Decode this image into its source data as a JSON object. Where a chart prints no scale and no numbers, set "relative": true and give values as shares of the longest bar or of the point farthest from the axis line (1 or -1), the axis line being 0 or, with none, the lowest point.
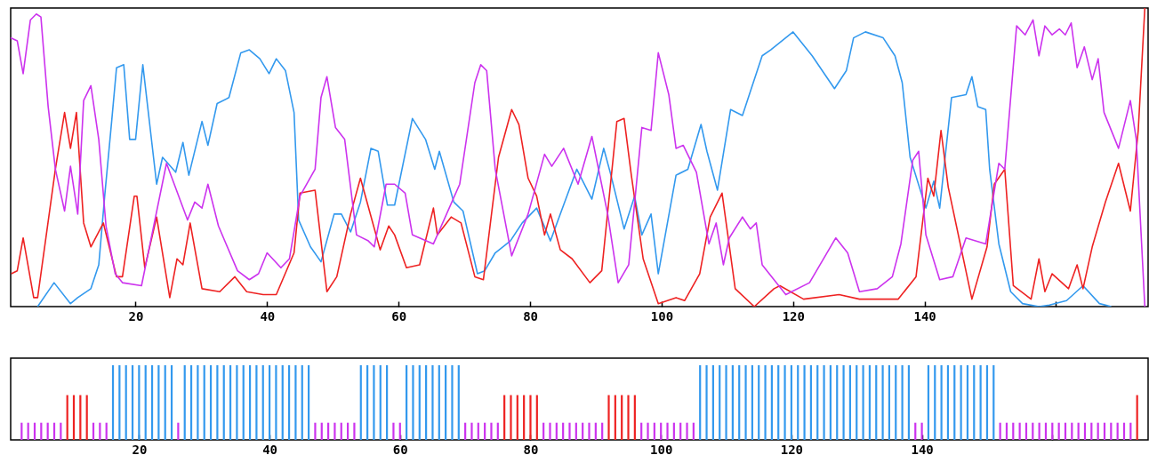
{
  "chart_data": [
    {
      "type": "line",
      "relative": true,
      "xlim": [
        1,
        174
      ],
      "xticks": [
        20,
        40,
        60,
        80,
        100,
        120,
        140,
        {
          "value": 160,
          "label": null
        }
      ],
      "series": [
        {
          "color": "#3399ee",
          "x": [
            5.1,
            7.6,
            10.1,
            11.2,
            13.2,
            14.4,
            15.3,
            16.4,
            17.1,
            18.2,
            19.1,
            20,
            21.1,
            23.2,
            24.1,
            26.1,
            27.2,
            28.1,
            30.1,
            31,
            32.4,
            34.2,
            36,
            37.3,
            38.9,
            40.3,
            41.4,
            42.8,
            44.1,
            44.8,
            46.6,
            48.2,
            50.2,
            51.3,
            52.7,
            54.2,
            55.8,
            56.9,
            58.3,
            59.4,
            62.1,
            64.1,
            65.5,
            66.2,
            68.4,
            69.8,
            72,
            73.1,
            74.7,
            77,
            78.8,
            81,
            83.1,
            84.6,
            87.1,
            89.4,
            91.2,
            92.3,
            94.3,
            95.9,
            97,
            98.4,
            99.5,
            102.2,
            104,
            106,
            106.9,
            108.5,
            110.5,
            112.3,
            113.5,
            115.3,
            116.6,
            120,
            122.9,
            126.3,
            128.1,
            129.2,
            131,
            133.7,
            135.5,
            136.6,
            137.8,
            140.2,
            141.4,
            142.3,
            144.1,
            146.3,
            147.2,
            148.1,
            149.3,
            149.9,
            151.3,
            153.1,
            154.9,
            157.4,
            159,
            161.6,
            164.1,
            166.6,
            168.4
          ],
          "values": [
            0,
            0.08,
            0.01,
            0.03,
            0.06,
            0.14,
            0.37,
            0.63,
            0.8,
            0.81,
            0.56,
            0.56,
            0.81,
            0.41,
            0.5,
            0.45,
            0.55,
            0.44,
            0.62,
            0.54,
            0.68,
            0.7,
            0.85,
            0.86,
            0.83,
            0.78,
            0.83,
            0.79,
            0.65,
            0.29,
            0.2,
            0.15,
            0.31,
            0.31,
            0.25,
            0.35,
            0.53,
            0.52,
            0.34,
            0.34,
            0.63,
            0.56,
            0.46,
            0.52,
            0.35,
            0.32,
            0.11,
            0.12,
            0.18,
            0.22,
            0.28,
            0.33,
            0.22,
            0.31,
            0.46,
            0.36,
            0.53,
            0.44,
            0.26,
            0.37,
            0.24,
            0.31,
            0.11,
            0.44,
            0.46,
            0.61,
            0.52,
            0.39,
            0.66,
            0.64,
            0.72,
            0.84,
            0.86,
            0.92,
            0.84,
            0.73,
            0.79,
            0.9,
            0.92,
            0.9,
            0.84,
            0.75,
            0.5,
            0.33,
            0.42,
            0.33,
            0.7,
            0.71,
            0.77,
            0.67,
            0.66,
            0.46,
            0.21,
            0.05,
            0.01,
            0,
            0.005,
            0.02,
            0.07,
            0.01,
            0
          ]
        },
        {
          "color": "#ee2222",
          "x": [
            1.1,
            2,
            2.9,
            4.5,
            5.1,
            7.8,
            9.2,
            10.1,
            11,
            12.1,
            13.2,
            15.1,
            17.1,
            18,
            19.8,
            20.2,
            21.4,
            23.2,
            25.2,
            26.3,
            27.2,
            28.3,
            30.1,
            32.8,
            35.1,
            36.9,
            39.4,
            41.4,
            44.1,
            45,
            47.3,
            49.1,
            50.6,
            52.7,
            54.2,
            57.2,
            58.5,
            59.4,
            61.2,
            63.2,
            65.3,
            65.9,
            68,
            69.5,
            71.6,
            72.9,
            75.2,
            77.2,
            78.3,
            79.7,
            81,
            82.2,
            83.1,
            84.6,
            86.4,
            89.1,
            90.9,
            93.2,
            94.3,
            95.4,
            97.2,
            99.5,
            102.2,
            103.5,
            105.8,
            107.4,
            109.2,
            111.2,
            114.1,
            117.1,
            118,
            121.6,
            127,
            130.1,
            136,
            138.7,
            140.5,
            141.4,
            142.5,
            143.6,
            147.2,
            149.5,
            150.6,
            152.2,
            153.5,
            156.2,
            157.4,
            158.3,
            159.4,
            161.9,
            163.2,
            164.1,
            165.5,
            167.5,
            169.5,
            171.3,
            172.5,
            173.5
          ],
          "values": [
            0.11,
            0.12,
            0.23,
            0.03,
            0.03,
            0.46,
            0.65,
            0.53,
            0.65,
            0.28,
            0.2,
            0.28,
            0.1,
            0.1,
            0.37,
            0.37,
            0.13,
            0.3,
            0.03,
            0.16,
            0.14,
            0.28,
            0.06,
            0.05,
            0.1,
            0.05,
            0.04,
            0.04,
            0.18,
            0.38,
            0.39,
            0.05,
            0.1,
            0.31,
            0.43,
            0.19,
            0.27,
            0.24,
            0.13,
            0.14,
            0.33,
            0.24,
            0.3,
            0.28,
            0.1,
            0.09,
            0.5,
            0.66,
            0.61,
            0.43,
            0.37,
            0.24,
            0.31,
            0.19,
            0.16,
            0.08,
            0.12,
            0.62,
            0.63,
            0.44,
            0.16,
            0.01,
            0.03,
            0.02,
            0.11,
            0.3,
            0.38,
            0.06,
            0,
            0.06,
            0.07,
            0.025,
            0.04,
            0.025,
            0.025,
            0.1,
            0.43,
            0.37,
            0.59,
            0.4,
            0.025,
            0.2,
            0.41,
            0.46,
            0.07,
            0.025,
            0.16,
            0.05,
            0.11,
            0.06,
            0.14,
            0.06,
            0.2,
            0.35,
            0.48,
            0.32,
            0.59,
            1
          ]
        },
        {
          "color": "#cc33ee",
          "x": [
            1,
            2,
            2.9,
            4,
            4.9,
            5.6,
            6.7,
            7.8,
            9.2,
            10.1,
            11.2,
            12.1,
            13.2,
            14.4,
            15.5,
            16.9,
            18,
            20.9,
            24.7,
            27.9,
            29,
            30.1,
            31,
            32.6,
            35.5,
            37.3,
            38.7,
            40,
            42.1,
            43.4,
            45,
            47.3,
            48.2,
            49.1,
            50.4,
            51.8,
            53.6,
            55.4,
            56.3,
            58.1,
            59.4,
            61,
            62.1,
            65.3,
            69.3,
            71.6,
            72.5,
            73.4,
            74.7,
            77.2,
            79.7,
            82.2,
            83.3,
            85.1,
            87.3,
            89.4,
            91.8,
            93.4,
            95,
            97,
            98.4,
            99.5,
            101.1,
            102.2,
            103.3,
            105.3,
            107.2,
            108.3,
            109.4,
            110.3,
            112.3,
            113.5,
            114.4,
            115.3,
            118.9,
            122.5,
            126.5,
            128.3,
            130.1,
            132.8,
            135.1,
            136.4,
            138.2,
            139.1,
            140.2,
            142.3,
            144.3,
            146.3,
            149.3,
            151.3,
            152.2,
            154,
            155.3,
            156.5,
            157.4,
            158.3,
            159.4,
            160.5,
            161.4,
            162.3,
            163.2,
            164.3,
            165.5,
            166.4,
            167.3,
            169.5,
            171.3,
            172.2,
            173.5
          ],
          "values": [
            0.9,
            0.89,
            0.78,
            0.96,
            0.98,
            0.97,
            0.67,
            0.46,
            0.32,
            0.47,
            0.31,
            0.69,
            0.74,
            0.56,
            0.27,
            0.11,
            0.08,
            0.07,
            0.48,
            0.29,
            0.35,
            0.33,
            0.41,
            0.27,
            0.12,
            0.09,
            0.11,
            0.18,
            0.13,
            0.16,
            0.37,
            0.46,
            0.7,
            0.77,
            0.6,
            0.56,
            0.24,
            0.22,
            0.2,
            0.41,
            0.41,
            0.38,
            0.24,
            0.21,
            0.41,
            0.75,
            0.81,
            0.79,
            0.46,
            0.17,
            0.31,
            0.51,
            0.47,
            0.53,
            0.41,
            0.57,
            0.31,
            0.08,
            0.14,
            0.6,
            0.59,
            0.85,
            0.71,
            0.53,
            0.54,
            0.45,
            0.21,
            0.28,
            0.14,
            0.23,
            0.3,
            0.26,
            0.28,
            0.14,
            0.04,
            0.08,
            0.23,
            0.18,
            0.05,
            0.06,
            0.1,
            0.21,
            0.49,
            0.52,
            0.24,
            0.09,
            0.1,
            0.23,
            0.21,
            0.48,
            0.46,
            0.94,
            0.91,
            0.96,
            0.84,
            0.94,
            0.91,
            0.93,
            0.91,
            0.95,
            0.8,
            0.87,
            0.76,
            0.83,
            0.65,
            0.53,
            0.69,
            0.56,
            0
          ]
        }
      ]
    },
    {
      "type": "bar",
      "relative": true,
      "xlim": [
        1,
        174
      ],
      "xticks": [
        20,
        40,
        60,
        80,
        100,
        120,
        140,
        {
          "value": 160,
          "label": null
        }
      ],
      "x": [
        2,
        3,
        4,
        5,
        6,
        7,
        8,
        9,
        10,
        11,
        12,
        13,
        14,
        15,
        16,
        17,
        18,
        19,
        20,
        21,
        22,
        23,
        24,
        25,
        26,
        27,
        28,
        29,
        30,
        31,
        32,
        33,
        34,
        35,
        36,
        37,
        38,
        39,
        40,
        41,
        42,
        43,
        44,
        45,
        46,
        47,
        48,
        49,
        50,
        51,
        52,
        53,
        54,
        55,
        56,
        57,
        58,
        59,
        60,
        61,
        62,
        63,
        64,
        65,
        66,
        67,
        68,
        69,
        70,
        71,
        72,
        73,
        74,
        75,
        76,
        77,
        78,
        79,
        80,
        81,
        82,
        83,
        84,
        85,
        86,
        87,
        88,
        89,
        90,
        91,
        92,
        93,
        94,
        95,
        96,
        97,
        98,
        99,
        100,
        101,
        102,
        103,
        104,
        105,
        106,
        107,
        108,
        109,
        110,
        111,
        112,
        113,
        114,
        115,
        116,
        117,
        118,
        119,
        120,
        121,
        122,
        123,
        124,
        125,
        126,
        127,
        128,
        129,
        130,
        131,
        132,
        133,
        134,
        135,
        136,
        137,
        138,
        139,
        140,
        141,
        142,
        143,
        144,
        145,
        146,
        147,
        148,
        149,
        150,
        151,
        152,
        153,
        154,
        155,
        156,
        157,
        158,
        159,
        160,
        161,
        162,
        163,
        164,
        165,
        166,
        167,
        168,
        169,
        170,
        171,
        172,
        173
      ],
      "values": [
        0.23,
        0.23,
        0.23,
        0.23,
        0.23,
        0.23,
        0.23,
        0.6,
        0.6,
        0.6,
        0.6,
        0.23,
        0.23,
        0.23,
        1,
        1,
        1,
        1,
        1,
        1,
        1,
        1,
        1,
        1,
        0.23,
        1,
        1,
        1,
        1,
        1,
        1,
        1,
        1,
        1,
        1,
        1,
        1,
        1,
        1,
        1,
        1,
        1,
        1,
        1,
        1,
        0.23,
        0.23,
        0.23,
        0.23,
        0.23,
        0.23,
        0.23,
        1,
        1,
        1,
        1,
        1,
        0.23,
        0.23,
        1,
        1,
        1,
        1,
        1,
        1,
        1,
        1,
        1,
        0.23,
        0.23,
        0.23,
        0.23,
        0.23,
        0.23,
        0.6,
        0.6,
        0.6,
        0.6,
        0.6,
        0.6,
        0.23,
        0.23,
        0.23,
        0.23,
        0.23,
        0.23,
        0.23,
        0.23,
        0.23,
        0.23,
        0.6,
        0.6,
        0.6,
        0.6,
        0.6,
        0.23,
        0.23,
        0.23,
        0.23,
        0.23,
        0.23,
        0.23,
        0.23,
        0.23,
        1,
        1,
        1,
        1,
        1,
        1,
        1,
        1,
        1,
        1,
        1,
        1,
        1,
        1,
        1,
        1,
        1,
        1,
        1,
        1,
        1,
        1,
        1,
        1,
        1,
        1,
        1,
        1,
        1,
        1,
        1,
        1,
        1,
        0.23,
        0.23,
        1,
        1,
        1,
        1,
        1,
        1,
        1,
        1,
        1,
        1,
        1,
        0.23,
        0.23,
        0.23,
        0.23,
        0.23,
        0.23,
        0.23,
        0.23,
        0.23,
        0.23,
        0.23,
        0.23,
        0.23,
        0.23,
        0.23,
        0.23,
        0.23,
        0.23,
        0.23,
        0.23,
        0.23,
        0.6
      ],
      "colors": [
        "#cc33ee",
        "#cc33ee",
        "#cc33ee",
        "#cc33ee",
        "#cc33ee",
        "#cc33ee",
        "#cc33ee",
        "#ee2222",
        "#ee2222",
        "#ee2222",
        "#ee2222",
        "#cc33ee",
        "#cc33ee",
        "#cc33ee",
        "#3399ee",
        "#3399ee",
        "#3399ee",
        "#3399ee",
        "#3399ee",
        "#3399ee",
        "#3399ee",
        "#3399ee",
        "#3399ee",
        "#3399ee",
        "#cc33ee",
        "#3399ee",
        "#3399ee",
        "#3399ee",
        "#3399ee",
        "#3399ee",
        "#3399ee",
        "#3399ee",
        "#3399ee",
        "#3399ee",
        "#3399ee",
        "#3399ee",
        "#3399ee",
        "#3399ee",
        "#3399ee",
        "#3399ee",
        "#3399ee",
        "#3399ee",
        "#3399ee",
        "#3399ee",
        "#3399ee",
        "#cc33ee",
        "#cc33ee",
        "#cc33ee",
        "#cc33ee",
        "#cc33ee",
        "#cc33ee",
        "#cc33ee",
        "#3399ee",
        "#3399ee",
        "#3399ee",
        "#3399ee",
        "#3399ee",
        "#cc33ee",
        "#cc33ee",
        "#3399ee",
        "#3399ee",
        "#3399ee",
        "#3399ee",
        "#3399ee",
        "#3399ee",
        "#3399ee",
        "#3399ee",
        "#3399ee",
        "#cc33ee",
        "#cc33ee",
        "#cc33ee",
        "#cc33ee",
        "#cc33ee",
        "#cc33ee",
        "#ee2222",
        "#ee2222",
        "#ee2222",
        "#ee2222",
        "#ee2222",
        "#ee2222",
        "#cc33ee",
        "#cc33ee",
        "#cc33ee",
        "#cc33ee",
        "#cc33ee",
        "#cc33ee",
        "#cc33ee",
        "#cc33ee",
        "#cc33ee",
        "#cc33ee",
        "#ee2222",
        "#ee2222",
        "#ee2222",
        "#ee2222",
        "#ee2222",
        "#cc33ee",
        "#cc33ee",
        "#cc33ee",
        "#cc33ee",
        "#cc33ee",
        "#cc33ee",
        "#cc33ee",
        "#cc33ee",
        "#cc33ee",
        "#3399ee",
        "#3399ee",
        "#3399ee",
        "#3399ee",
        "#3399ee",
        "#3399ee",
        "#3399ee",
        "#3399ee",
        "#3399ee",
        "#3399ee",
        "#3399ee",
        "#3399ee",
        "#3399ee",
        "#3399ee",
        "#3399ee",
        "#3399ee",
        "#3399ee",
        "#3399ee",
        "#3399ee",
        "#3399ee",
        "#3399ee",
        "#3399ee",
        "#3399ee",
        "#3399ee",
        "#3399ee",
        "#3399ee",
        "#3399ee",
        "#3399ee",
        "#3399ee",
        "#3399ee",
        "#3399ee",
        "#3399ee",
        "#3399ee",
        "#cc33ee",
        "#cc33ee",
        "#3399ee",
        "#3399ee",
        "#3399ee",
        "#3399ee",
        "#3399ee",
        "#3399ee",
        "#3399ee",
        "#3399ee",
        "#3399ee",
        "#3399ee",
        "#3399ee",
        "#cc33ee",
        "#cc33ee",
        "#cc33ee",
        "#cc33ee",
        "#cc33ee",
        "#cc33ee",
        "#cc33ee",
        "#cc33ee",
        "#cc33ee",
        "#cc33ee",
        "#cc33ee",
        "#cc33ee",
        "#cc33ee",
        "#cc33ee",
        "#cc33ee",
        "#cc33ee",
        "#cc33ee",
        "#cc33ee",
        "#cc33ee",
        "#cc33ee",
        "#cc33ee",
        "#ee2222"
      ]
    }
  ]
}
